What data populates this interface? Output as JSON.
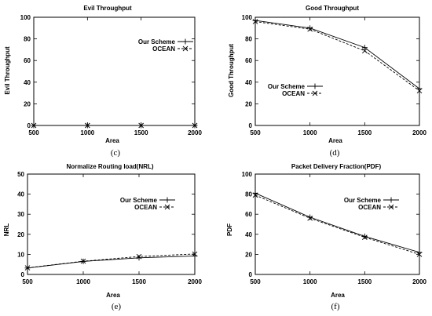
{
  "chart_data": [
    {
      "type": "line",
      "caption": "(c)",
      "title": "Evil Throughput",
      "xlabel": "Area",
      "ylabel": "Evil Throughput",
      "x": [
        500,
        1000,
        1500,
        2000
      ],
      "xticks": [
        "500",
        "1000",
        "1500",
        "2000"
      ],
      "yticks": [
        "0",
        "20",
        "40",
        "60",
        "80",
        "100"
      ],
      "xlim": [
        500,
        2000
      ],
      "ylim": [
        0,
        100
      ],
      "legend_position": "top-right",
      "series": [
        {
          "name": "Our Scheme",
          "values": [
            0,
            0,
            0,
            0
          ],
          "marker": "plus",
          "dash": "solid"
        },
        {
          "name": "OCEAN",
          "values": [
            0,
            0,
            0,
            0
          ],
          "marker": "x",
          "dash": "dashed"
        }
      ]
    },
    {
      "type": "line",
      "caption": "(d)",
      "title": "Good Throughput",
      "xlabel": "Area",
      "ylabel": "Good Throughput",
      "x": [
        500,
        1000,
        1500,
        2000
      ],
      "xticks": [
        "500",
        "1000",
        "1500",
        "2000"
      ],
      "yticks": [
        "0",
        "20",
        "40",
        "60",
        "80",
        "100"
      ],
      "xlim": [
        500,
        2000
      ],
      "ylim": [
        0,
        100
      ],
      "legend_position": "center-right",
      "series": [
        {
          "name": "Our Scheme",
          "values": [
            97,
            90,
            72,
            34
          ],
          "marker": "plus",
          "dash": "solid"
        },
        {
          "name": "OCEAN",
          "values": [
            96,
            89,
            69,
            32
          ],
          "marker": "x",
          "dash": "dashed"
        }
      ]
    },
    {
      "type": "line",
      "caption": "(e)",
      "title": "Normalize Routing load(NRL)",
      "xlabel": "Area",
      "ylabel": "NRL",
      "x": [
        500,
        1000,
        1500,
        2000
      ],
      "xticks": [
        "500",
        "1000",
        "1500",
        "2000"
      ],
      "yticks": [
        "0",
        "10",
        "20",
        "30",
        "40",
        "50"
      ],
      "xlim": [
        500,
        2000
      ],
      "ylim": [
        0,
        50
      ],
      "legend_position": "top-right",
      "series": [
        {
          "name": "Our Scheme",
          "values": [
            3.2,
            6.5,
            8.3,
            9.2
          ],
          "marker": "plus",
          "dash": "solid"
        },
        {
          "name": "OCEAN",
          "values": [
            3.3,
            6.6,
            8.9,
            10.2
          ],
          "marker": "x",
          "dash": "dashed"
        }
      ]
    },
    {
      "type": "line",
      "caption": "(f)",
      "title": "Packet Delivery Fraction(PDF)",
      "xlabel": "Area",
      "ylabel": "PDF",
      "x": [
        500,
        1000,
        1500,
        2000
      ],
      "xticks": [
        "500",
        "1000",
        "1500",
        "2000"
      ],
      "yticks": [
        "0",
        "20",
        "40",
        "60",
        "80",
        "100"
      ],
      "xlim": [
        500,
        2000
      ],
      "ylim": [
        0,
        100
      ],
      "legend_position": "top-right",
      "series": [
        {
          "name": "Our Scheme",
          "values": [
            81,
            57,
            38,
            22
          ],
          "marker": "plus",
          "dash": "solid"
        },
        {
          "name": "OCEAN",
          "values": [
            79,
            56,
            37,
            20
          ],
          "marker": "x",
          "dash": "dashed"
        }
      ]
    }
  ]
}
